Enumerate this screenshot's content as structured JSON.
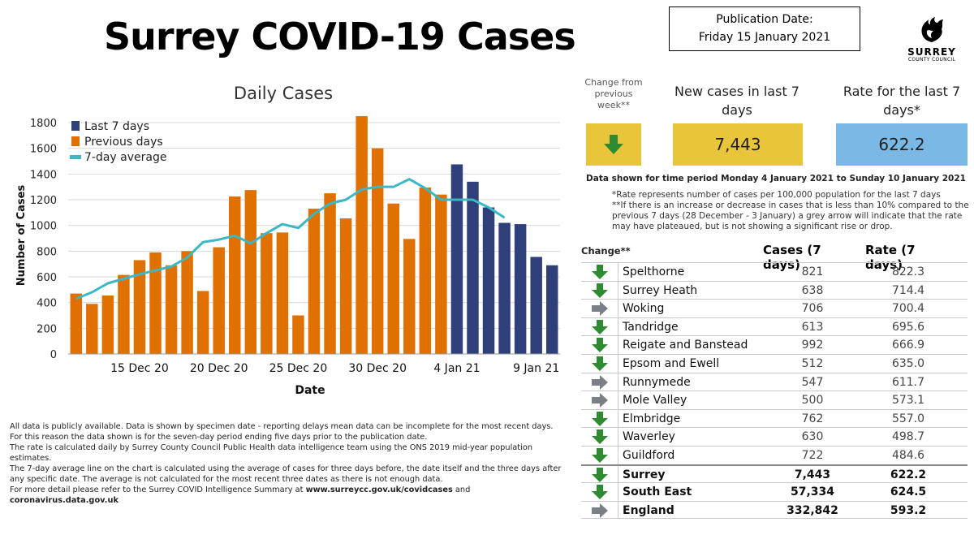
{
  "title": "Surrey COVID-19 Cases",
  "publication": {
    "line1": "Publication Date:",
    "line2": "Friday 15 January 2021"
  },
  "logo": {
    "line1": "SURREY",
    "line2": "COUNTY COUNCIL",
    "icon": "stag-emblem-icon"
  },
  "colors": {
    "last7": "#2e3f7a",
    "previous": "#e07000",
    "average": "#3bb8c4",
    "green_arrow": "#2e8b32",
    "grey_arrow": "#7a7f88",
    "yellow": "#e8c53a",
    "blue": "#7ab8e6"
  },
  "chart_data": {
    "type": "bar",
    "title": "Daily Cases",
    "xlabel": "Date",
    "ylabel": "Number of Cases",
    "ylim": [
      0,
      1800
    ],
    "yticks": [
      0,
      200,
      400,
      600,
      800,
      1000,
      1200,
      1400,
      1600,
      1800
    ],
    "grid": true,
    "legend_position": "top-left",
    "legend": [
      {
        "name": "Last 7 days",
        "color": "#2e3f7a",
        "kind": "box"
      },
      {
        "name": "Previous days",
        "color": "#e07000",
        "kind": "box"
      },
      {
        "name": "7-day average",
        "color": "#3bb8c4",
        "kind": "line"
      }
    ],
    "dates": [
      "11 Dec",
      "12 Dec",
      "13 Dec",
      "14 Dec",
      "15 Dec",
      "16 Dec",
      "17 Dec",
      "18 Dec",
      "19 Dec",
      "20 Dec",
      "21 Dec",
      "22 Dec",
      "23 Dec",
      "24 Dec",
      "25 Dec",
      "26 Dec",
      "27 Dec",
      "28 Dec",
      "29 Dec",
      "30 Dec",
      "31 Dec",
      "1 Jan",
      "2 Jan",
      "3 Jan",
      "4 Jan",
      "5 Jan",
      "6 Jan",
      "7 Jan",
      "8 Jan",
      "9 Jan",
      "10 Jan"
    ],
    "xtick_labels": [
      {
        "index": 4,
        "label": "15 Dec 20"
      },
      {
        "index": 9,
        "label": "20 Dec 20"
      },
      {
        "index": 14,
        "label": "25 Dec 20"
      },
      {
        "index": 19,
        "label": "30 Dec 20"
      },
      {
        "index": 24,
        "label": "4 Jan 21"
      },
      {
        "index": 29,
        "label": "9 Jan 21"
      }
    ],
    "values": [
      470,
      390,
      455,
      615,
      730,
      790,
      690,
      800,
      490,
      830,
      1225,
      1275,
      940,
      945,
      300,
      1130,
      1250,
      1055,
      1850,
      1600,
      1170,
      895,
      1295,
      1240,
      1475,
      1340,
      1140,
      1020,
      1010,
      755,
      690
    ],
    "series_group": [
      "previous",
      "previous",
      "previous",
      "previous",
      "previous",
      "previous",
      "previous",
      "previous",
      "previous",
      "previous",
      "previous",
      "previous",
      "previous",
      "previous",
      "previous",
      "previous",
      "previous",
      "previous",
      "previous",
      "previous",
      "previous",
      "previous",
      "previous",
      "previous",
      "last7",
      "last7",
      "last7",
      "last7",
      "last7",
      "last7",
      "last7"
    ],
    "average": [
      430,
      480,
      550,
      585,
      620,
      650,
      680,
      750,
      870,
      890,
      920,
      860,
      940,
      1010,
      980,
      1090,
      1170,
      1200,
      1280,
      1300,
      1300,
      1360,
      1290,
      1200,
      1200,
      1200,
      1140,
      1060,
      null,
      null,
      null
    ]
  },
  "kpis": {
    "change_label": "Change from previous week**",
    "change_icon": "down-arrow-icon",
    "new_label": "New cases in last 7 days",
    "new_value": "7,443",
    "rate_label": "Rate for the last 7 days*",
    "rate_value": "622.2"
  },
  "period_note": "Data shown for time period Monday 4 January 2021 to Sunday 10 January 2021",
  "notes": [
    "*Rate represents number of cases per 100,000 population for the last 7 days",
    "**If there is an increase or decrease in cases that is less than 10% compared to the previous 7 days (28 December - 3 January) a grey arrow will indicate that the rate may have plateaued, but is not showing a significant rise or drop."
  ],
  "table": {
    "headers": {
      "change": "Change**",
      "cases": "Cases  (7 days)",
      "rate": "Rate (7 days)"
    },
    "rows": [
      {
        "name": "Spelthorne",
        "cases": "821",
        "rate": "822.3",
        "arrow": "down"
      },
      {
        "name": "Surrey Heath",
        "cases": "638",
        "rate": "714.4",
        "arrow": "down"
      },
      {
        "name": "Woking",
        "cases": "706",
        "rate": "700.4",
        "arrow": "flat"
      },
      {
        "name": "Tandridge",
        "cases": "613",
        "rate": "695.6",
        "arrow": "down"
      },
      {
        "name": "Reigate and Banstead",
        "cases": "992",
        "rate": "666.9",
        "arrow": "down"
      },
      {
        "name": "Epsom and Ewell",
        "cases": "512",
        "rate": "635.0",
        "arrow": "down"
      },
      {
        "name": "Runnymede",
        "cases": "547",
        "rate": "611.7",
        "arrow": "flat"
      },
      {
        "name": "Mole Valley",
        "cases": "500",
        "rate": "573.1",
        "arrow": "flat"
      },
      {
        "name": "Elmbridge",
        "cases": "762",
        "rate": "557.0",
        "arrow": "down"
      },
      {
        "name": "Waverley",
        "cases": "630",
        "rate": "498.7",
        "arrow": "down"
      },
      {
        "name": "Guildford",
        "cases": "722",
        "rate": "484.6",
        "arrow": "down"
      }
    ],
    "totals": [
      {
        "name": "Surrey",
        "cases": "7,443",
        "rate": "622.2",
        "arrow": "down"
      },
      {
        "name": "South East",
        "cases": "57,334",
        "rate": "624.5",
        "arrow": "down"
      },
      {
        "name": "England",
        "cases": "332,842",
        "rate": "593.2",
        "arrow": "flat"
      }
    ]
  },
  "footnotes": {
    "p1": "All data is publicly available. Data is shown by specimen date - reporting delays mean data can be incomplete for the most recent days.",
    "p2": "For this reason the data shown is for the seven-day period ending five days prior to the publication date.",
    "p3": "The rate is calculated daily by Surrey County Council Public Health data intelligence team using the ONS 2019 mid-year population estimates.",
    "p4": "The 7-day average line on the chart is calculated using the average of cases for three days before, the date itself and the three days after any specific date. The average is not calculated for the most recent three dates as there is not enough data.",
    "p5_pre": "For more detail please refer to the Surrey COVID Intelligence Summary at ",
    "p5_link1": "www.surreycc.gov.uk/covidcases",
    "p5_mid": " and ",
    "p5_link2": "coronavirus.data.gov.uk"
  }
}
